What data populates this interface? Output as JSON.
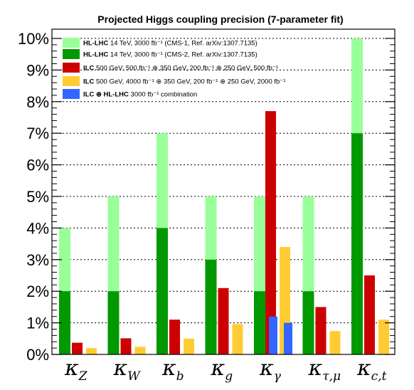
{
  "chart_data": {
    "type": "bar",
    "title": "Projected Higgs coupling precision (7-parameter fit)",
    "y_tick_labels": [
      "0%",
      "1%",
      "2%",
      "3%",
      "4%",
      "5%",
      "6%",
      "7%",
      "8%",
      "9%",
      "10%"
    ],
    "ylim": [
      0,
      10.5
    ],
    "grid": "horizontal-dotted",
    "legend_placement": "top-left",
    "categories": [
      {
        "symbol": "κ",
        "subscript": "Z"
      },
      {
        "symbol": "κ",
        "subscript": "W"
      },
      {
        "symbol": "κ",
        "subscript": "b"
      },
      {
        "symbol": "κ",
        "subscript": "g"
      },
      {
        "symbol": "κ",
        "subscript": "γ"
      },
      {
        "symbol": "κ",
        "subscript": "τ,μ"
      },
      {
        "symbol": "κ",
        "subscript": "c,t"
      }
    ],
    "series": [
      {
        "bold": "HL-LHC",
        "text": " 14 TeV, 3000 fb⁻¹ (CMS-1, Ref. arXiv:1307.7135)",
        "color": "#99ff99",
        "values": [
          4,
          5,
          7,
          5,
          5,
          5,
          10
        ]
      },
      {
        "bold": "HL-LHC",
        "text": " 14 TeV, 3000 fb⁻¹ (CMS-2, Ref. arXiv:1307.7135)",
        "color": "#009900",
        "values": [
          2,
          2,
          4,
          3,
          2,
          2,
          7
        ]
      },
      {
        "bold": "ILC",
        "text": " 500 GeV,   500 fb⁻¹ ⊕ 350 GeV, 200 fb⁻¹ ⊕ 250 GeV,   500 fb⁻¹",
        "color": "#cc0000",
        "values": [
          0.37,
          0.51,
          1.1,
          2.1,
          7.7,
          1.5,
          2.5
        ]
      },
      {
        "bold": "ILC",
        "text": " 500 GeV, 4000 fb⁻¹ ⊕ 350 GeV, 200 fb⁻¹ ⊕ 250 GeV, 2000 fb⁻¹",
        "color": "#ffcc33",
        "values": [
          0.2,
          0.24,
          0.5,
          0.96,
          3.4,
          0.74,
          1.1
        ]
      },
      {
        "bold": "ILC ⊕ HL-LHC",
        "text": " 3000 fb⁻¹ combination",
        "color": "#3366ff",
        "values": [
          null,
          null,
          null,
          null,
          1.2,
          null,
          null
        ],
        "values2": [
          null,
          null,
          null,
          null,
          1.0,
          null,
          null
        ]
      }
    ]
  }
}
